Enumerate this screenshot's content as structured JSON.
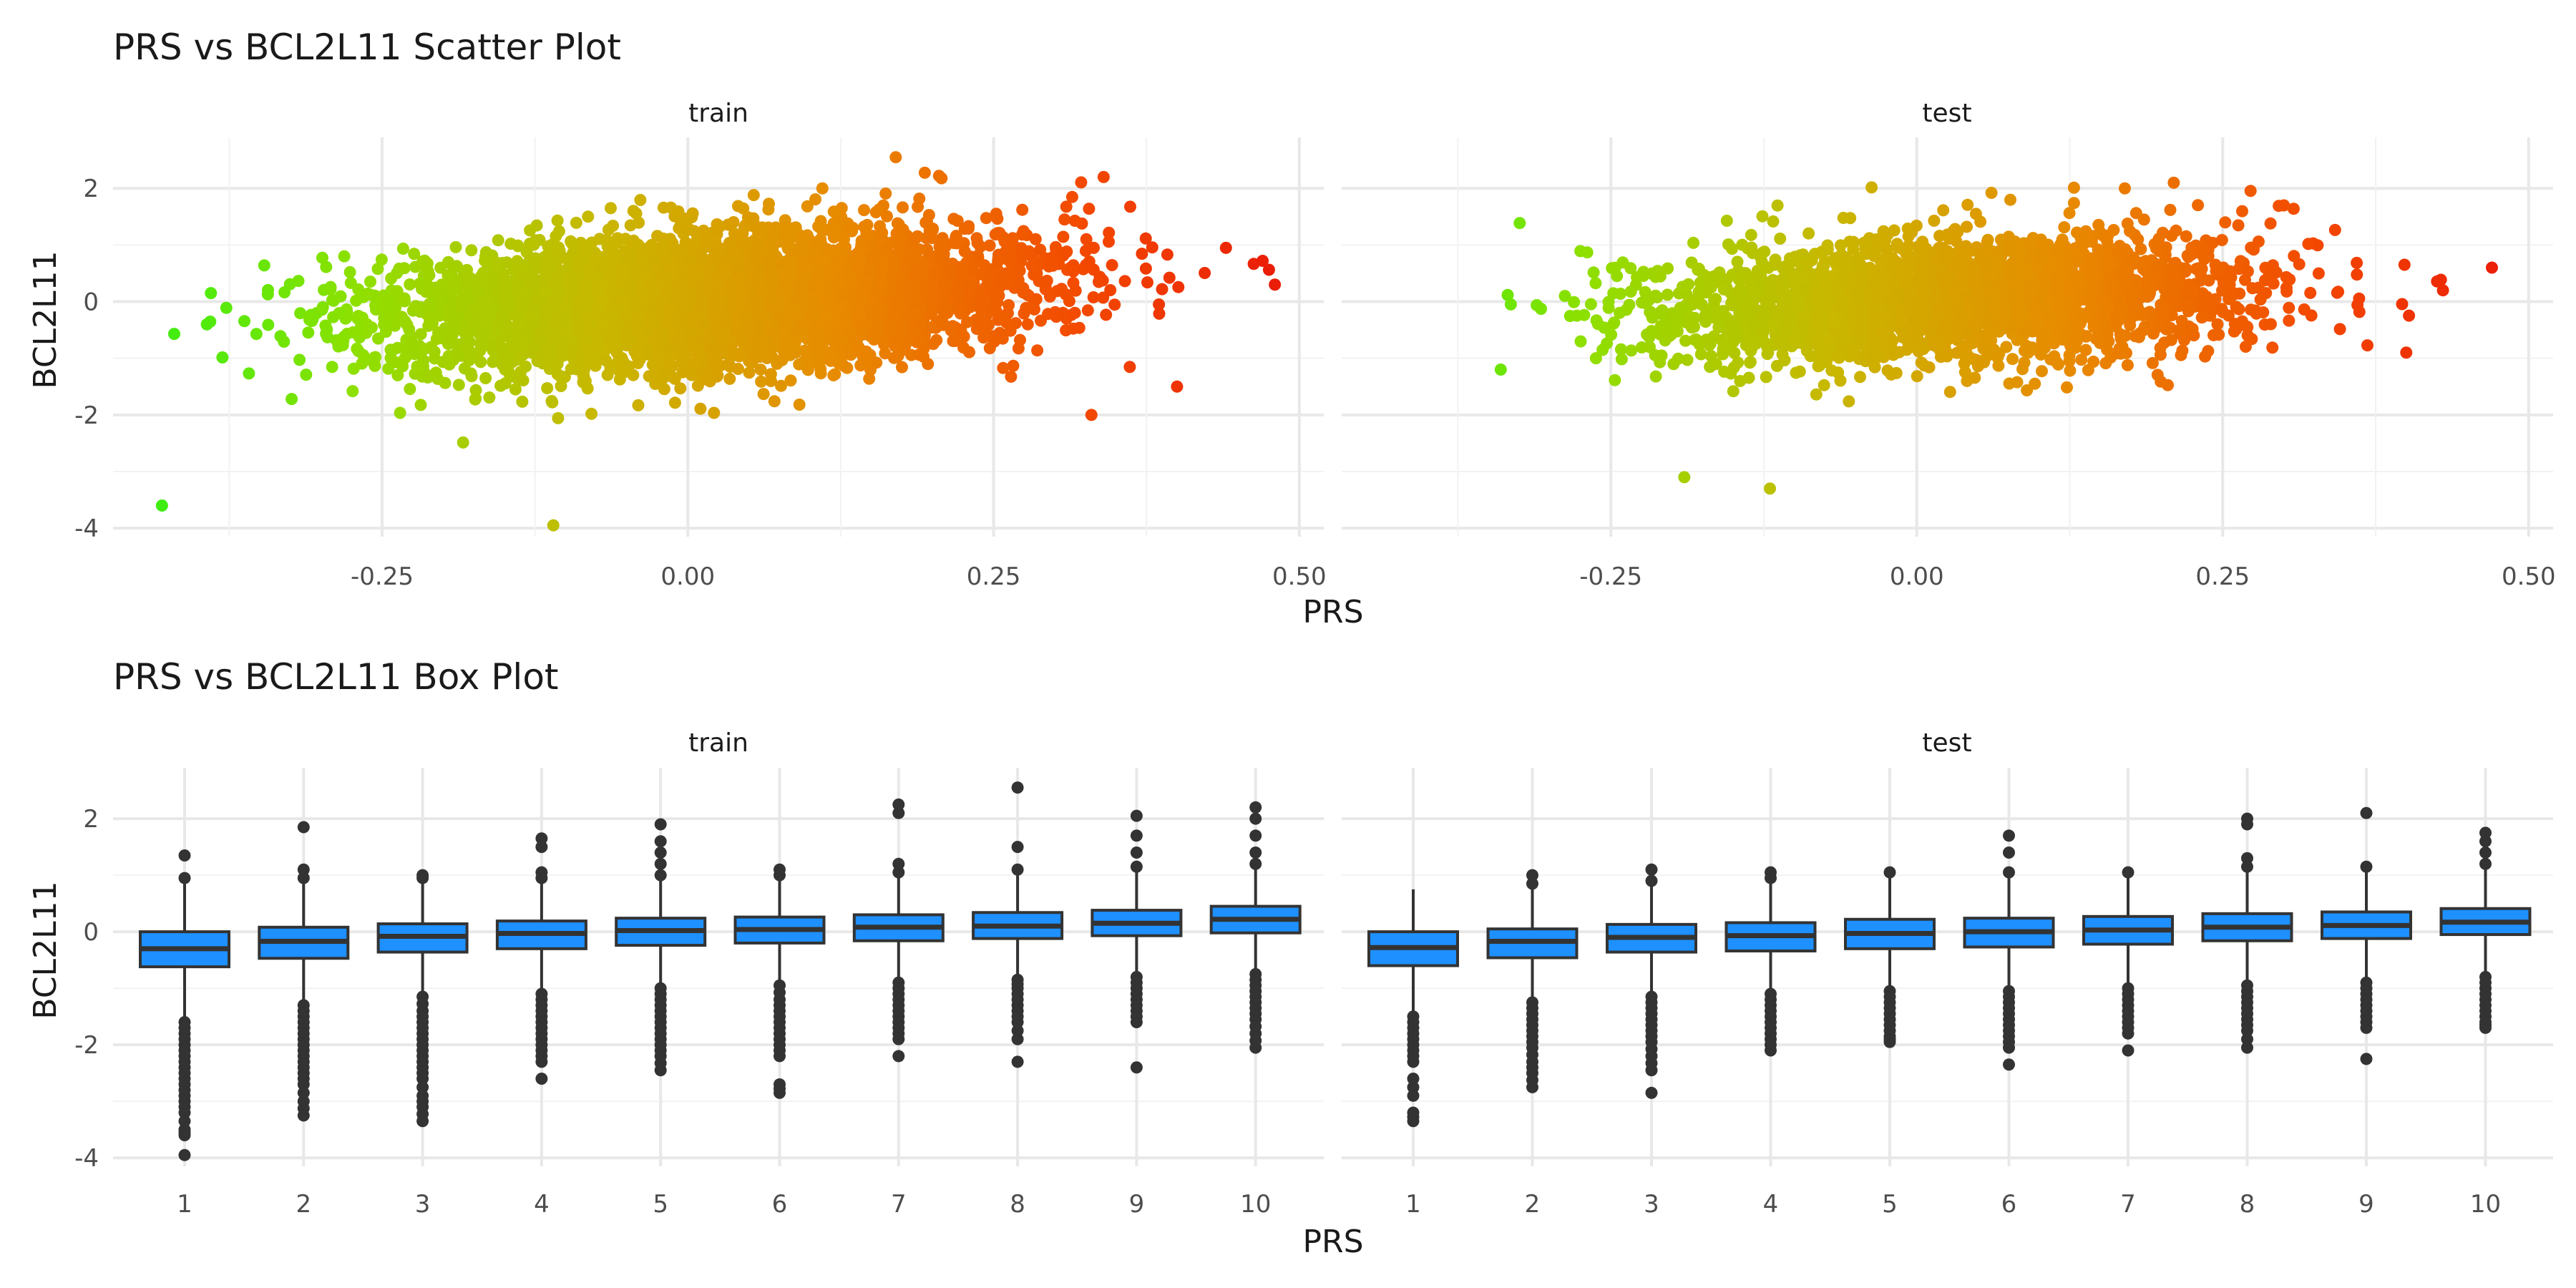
{
  "chart_data": [
    {
      "type": "scatter",
      "title": "PRS vs BCL2L11 Scatter Plot",
      "xlabel": "PRS",
      "ylabel": "BCL2L11",
      "xlim": [
        -0.47,
        0.52
      ],
      "ylim": [
        -4.15,
        2.9
      ],
      "x_ticks": [
        "-0.25",
        "0.00",
        "0.25",
        "0.50"
      ],
      "y_ticks": [
        "2",
        "0",
        "-2",
        "-4"
      ],
      "grid": true,
      "color_gradient": [
        "#2bf014",
        "#8ee000",
        "#c8b800",
        "#e88a00",
        "#f34900",
        "#e8120a"
      ],
      "facets": [
        {
          "name": "train",
          "n_points_approx": 20000,
          "x_range": [
            -0.45,
            0.48
          ],
          "notable_points": [
            {
              "x": -0.43,
              "y": -3.6
            },
            {
              "x": -0.42,
              "y": -0.57
            },
            {
              "x": -0.39,
              "y": 0.15
            },
            {
              "x": -0.11,
              "y": -3.95
            },
            {
              "x": 0.17,
              "y": 2.55
            },
            {
              "x": 0.11,
              "y": 2.0
            },
            {
              "x": 0.47,
              "y": 0.72
            },
            {
              "x": 0.48,
              "y": 0.3
            },
            {
              "x": 0.44,
              "y": 0.95
            },
            {
              "x": 0.4,
              "y": -1.5
            },
            {
              "x": 0.33,
              "y": -2.0
            },
            {
              "x": 0.34,
              "y": 2.2
            }
          ]
        },
        {
          "name": "test",
          "n_points_approx": 8000,
          "x_range": [
            -0.34,
            0.47
          ],
          "notable_points": [
            {
              "x": -0.34,
              "y": -1.2
            },
            {
              "x": -0.19,
              "y": -3.1
            },
            {
              "x": -0.12,
              "y": -3.3
            },
            {
              "x": 0.21,
              "y": 2.1
            },
            {
              "x": 0.17,
              "y": 2.0
            },
            {
              "x": 0.47,
              "y": 0.6
            },
            {
              "x": 0.43,
              "y": 0.2
            },
            {
              "x": 0.4,
              "y": -0.9
            },
            {
              "x": 0.3,
              "y": 1.7
            }
          ]
        }
      ]
    },
    {
      "type": "box",
      "title": "PRS vs BCL2L11 Box Plot",
      "xlabel": "PRS",
      "ylabel": "BCL2L11",
      "categories": [
        "1",
        "2",
        "3",
        "4",
        "5",
        "6",
        "7",
        "8",
        "9",
        "10"
      ],
      "ylim": [
        -4.15,
        2.9
      ],
      "y_ticks": [
        "2",
        "0",
        "-2",
        "-4"
      ],
      "box_fill": "#1e90ff",
      "box_line": "#333333",
      "facets": [
        {
          "name": "train",
          "boxes": [
            {
              "q1": -0.62,
              "median": -0.3,
              "q3": 0.0,
              "low": -1.5,
              "high": 0.9,
              "outliers_low": [
                -1.6,
                -1.8,
                -2.0,
                -2.2,
                -2.4,
                -2.6,
                -2.8,
                -3.0,
                -3.2,
                -3.5,
                -3.6,
                -3.95
              ],
              "outliers_high": [
                0.95,
                1.35
              ]
            },
            {
              "q1": -0.47,
              "median": -0.17,
              "q3": 0.08,
              "low": -1.2,
              "high": 0.85,
              "outliers_low": [
                -1.3,
                -1.5,
                -1.7,
                -1.9,
                -2.1,
                -2.3,
                -2.5,
                -2.7,
                -3.0,
                -3.25
              ],
              "outliers_high": [
                0.95,
                1.1,
                1.85
              ]
            },
            {
              "q1": -0.36,
              "median": -0.08,
              "q3": 0.14,
              "low": -1.1,
              "high": 0.88,
              "outliers_low": [
                -1.15,
                -1.4,
                -1.6,
                -1.8,
                -2.0,
                -2.2,
                -2.4,
                -2.6,
                -2.9,
                -3.1,
                -3.35
              ],
              "outliers_high": [
                0.95,
                1.0
              ]
            },
            {
              "q1": -0.3,
              "median": -0.03,
              "q3": 0.19,
              "low": -1.0,
              "high": 0.9,
              "outliers_low": [
                -1.1,
                -1.3,
                -1.5,
                -1.7,
                -1.9,
                -2.1,
                -2.3,
                -2.6
              ],
              "outliers_high": [
                0.95,
                1.05,
                1.5,
                1.65
              ]
            },
            {
              "q1": -0.24,
              "median": 0.02,
              "q3": 0.24,
              "low": -0.95,
              "high": 0.95,
              "outliers_low": [
                -1.0,
                -1.2,
                -1.4,
                -1.6,
                -1.8,
                -2.0,
                -2.2,
                -2.45
              ],
              "outliers_high": [
                1.0,
                1.2,
                1.4,
                1.6,
                1.9
              ]
            },
            {
              "q1": -0.2,
              "median": 0.04,
              "q3": 0.26,
              "low": -0.9,
              "high": 0.95,
              "outliers_low": [
                -0.95,
                -1.2,
                -1.4,
                -1.6,
                -1.8,
                -2.0,
                -2.2,
                -2.7,
                -2.85
              ],
              "outliers_high": [
                1.0,
                1.1
              ]
            },
            {
              "q1": -0.16,
              "median": 0.08,
              "q3": 0.3,
              "low": -0.85,
              "high": 1.0,
              "outliers_low": [
                -0.9,
                -1.1,
                -1.3,
                -1.5,
                -1.7,
                -1.9,
                -2.2
              ],
              "outliers_high": [
                1.05,
                1.2,
                2.1,
                2.25
              ]
            },
            {
              "q1": -0.12,
              "median": 0.1,
              "q3": 0.34,
              "low": -0.8,
              "high": 1.05,
              "outliers_low": [
                -0.85,
                -1.0,
                -1.2,
                -1.4,
                -1.6,
                -1.9,
                -2.3
              ],
              "outliers_high": [
                1.1,
                1.5,
                2.55
              ]
            },
            {
              "q1": -0.07,
              "median": 0.15,
              "q3": 0.38,
              "low": -0.75,
              "high": 1.1,
              "outliers_low": [
                -0.8,
                -1.0,
                -1.2,
                -1.4,
                -1.6,
                -2.4
              ],
              "outliers_high": [
                1.15,
                1.4,
                1.7,
                2.05
              ]
            },
            {
              "q1": -0.02,
              "median": 0.22,
              "q3": 0.45,
              "low": -0.7,
              "high": 1.15,
              "outliers_low": [
                -0.75,
                -0.95,
                -1.15,
                -1.35,
                -1.55,
                -1.8,
                -2.05
              ],
              "outliers_high": [
                1.2,
                1.4,
                1.7,
                2.0,
                2.2
              ]
            }
          ]
        },
        {
          "name": "test",
          "boxes": [
            {
              "q1": -0.6,
              "median": -0.28,
              "q3": 0.0,
              "low": -1.45,
              "high": 0.75,
              "outliers_low": [
                -1.5,
                -1.7,
                -1.9,
                -2.1,
                -2.3,
                -2.6,
                -2.9,
                -3.2,
                -3.35
              ],
              "outliers_high": []
            },
            {
              "q1": -0.46,
              "median": -0.17,
              "q3": 0.05,
              "low": -1.2,
              "high": 0.8,
              "outliers_low": [
                -1.25,
                -1.45,
                -1.65,
                -1.85,
                -2.05,
                -2.3,
                -2.5,
                -2.75
              ],
              "outliers_high": [
                0.85,
                1.0
              ]
            },
            {
              "q1": -0.36,
              "median": -0.1,
              "q3": 0.13,
              "low": -1.1,
              "high": 0.85,
              "outliers_low": [
                -1.15,
                -1.35,
                -1.55,
                -1.75,
                -1.95,
                -2.2,
                -2.45,
                -2.85
              ],
              "outliers_high": [
                0.9,
                1.1
              ]
            },
            {
              "q1": -0.34,
              "median": -0.07,
              "q3": 0.16,
              "low": -1.05,
              "high": 0.9,
              "outliers_low": [
                -1.1,
                -1.3,
                -1.5,
                -1.7,
                -1.9,
                -2.1
              ],
              "outliers_high": [
                0.95,
                1.05
              ]
            },
            {
              "q1": -0.3,
              "median": -0.03,
              "q3": 0.22,
              "low": -1.0,
              "high": 0.95,
              "outliers_low": [
                -1.05,
                -1.25,
                -1.45,
                -1.65,
                -1.85,
                -1.95
              ],
              "outliers_high": [
                1.05
              ]
            },
            {
              "q1": -0.27,
              "median": 0.0,
              "q3": 0.24,
              "low": -1.0,
              "high": 1.0,
              "outliers_low": [
                -1.05,
                -1.25,
                -1.45,
                -1.65,
                -1.85,
                -2.05,
                -2.35
              ],
              "outliers_high": [
                1.05,
                1.4,
                1.7
              ]
            },
            {
              "q1": -0.22,
              "median": 0.03,
              "q3": 0.27,
              "low": -0.95,
              "high": 1.0,
              "outliers_low": [
                -1.0,
                -1.2,
                -1.4,
                -1.6,
                -1.8,
                -2.1
              ],
              "outliers_high": [
                1.05
              ]
            },
            {
              "q1": -0.16,
              "median": 0.08,
              "q3": 0.32,
              "low": -0.9,
              "high": 1.05,
              "outliers_low": [
                -0.95,
                -1.15,
                -1.35,
                -1.55,
                -1.75,
                -2.05
              ],
              "outliers_high": [
                1.15,
                1.3,
                1.9,
                2.0
              ]
            },
            {
              "q1": -0.12,
              "median": 0.11,
              "q3": 0.35,
              "low": -0.85,
              "high": 1.1,
              "outliers_low": [
                -0.9,
                -1.1,
                -1.3,
                -1.5,
                -1.7,
                -2.25
              ],
              "outliers_high": [
                1.15,
                2.1
              ]
            },
            {
              "q1": -0.05,
              "median": 0.17,
              "q3": 0.41,
              "low": -0.75,
              "high": 1.15,
              "outliers_low": [
                -0.8,
                -1.0,
                -1.2,
                -1.4,
                -1.6,
                -1.7
              ],
              "outliers_high": [
                1.2,
                1.4,
                1.6,
                1.75
              ]
            }
          ]
        }
      ]
    }
  ]
}
